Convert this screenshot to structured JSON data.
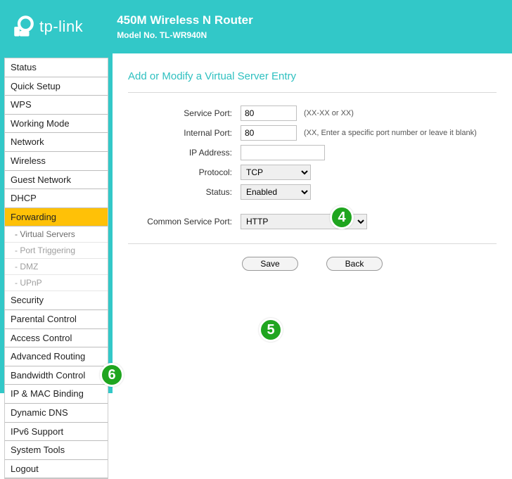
{
  "brand": {
    "name": "tp-link"
  },
  "header": {
    "title": "450M Wireless N Router",
    "model": "Model No. TL-WR940N"
  },
  "callouts": {
    "c4": "4",
    "c5": "5",
    "c6": "6",
    "color": "#1fa51f"
  },
  "nav": {
    "items": [
      "Status",
      "Quick Setup",
      "WPS",
      "Working Mode",
      "Network",
      "Wireless",
      "Guest Network",
      "DHCP",
      "Forwarding",
      "Security",
      "Parental Control",
      "Access Control",
      "Advanced Routing",
      "Bandwidth Control",
      "IP & MAC Binding",
      "Dynamic DNS",
      "IPv6 Support",
      "System Tools",
      "Logout"
    ],
    "active": "Forwarding",
    "subitems": [
      "- Virtual Servers",
      "- Port Triggering",
      "- DMZ",
      "- UPnP"
    ]
  },
  "page": {
    "title": "Add or Modify a Virtual Server Entry",
    "labels": {
      "service_port": "Service Port:",
      "internal_port": "Internal Port:",
      "ip_address": "IP Address:",
      "protocol": "Protocol:",
      "status": "Status:",
      "common_service_port": "Common Service Port:"
    },
    "values": {
      "service_port": "80",
      "internal_port": "80",
      "ip_address": "",
      "protocol": "TCP",
      "status": "Enabled",
      "common_service_port": "HTTP"
    },
    "hints": {
      "service_port": "(XX-XX or XX)",
      "internal_port": "(XX, Enter a specific port number or leave it blank)"
    },
    "buttons": {
      "save": "Save",
      "back": "Back"
    }
  },
  "colors": {
    "teal": "#32c8c8",
    "active_nav": "#ffc107",
    "title": "#2fc0c0",
    "rule": "#d9d9d9"
  }
}
